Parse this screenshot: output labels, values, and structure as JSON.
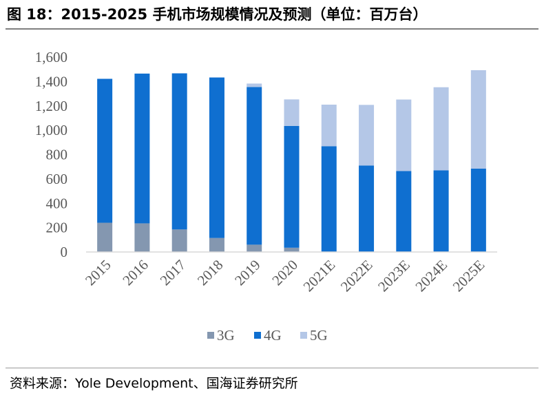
{
  "title": "图 18：2015-2025 手机市场规模情况及预测（单位：百万台）",
  "source": "资料来源：Yole Development、国海证券研究所",
  "colors": {
    "3G": "#8497b0",
    "4G": "#0f6fd0",
    "5G": "#b4c7e7",
    "axis": "#d9d9d9",
    "text": "#595959"
  },
  "chart_data": {
    "type": "bar",
    "stacked": true,
    "categories": [
      "2015",
      "2016",
      "2017",
      "2018",
      "2019",
      "2020",
      "2021E",
      "2022E",
      "2023E",
      "2024E",
      "2025E"
    ],
    "series": [
      {
        "name": "3G",
        "values": [
          240,
          235,
          185,
          115,
          60,
          35,
          0,
          0,
          0,
          0,
          0
        ]
      },
      {
        "name": "4G",
        "values": [
          1182,
          1230,
          1282,
          1318,
          1295,
          1000,
          868,
          710,
          665,
          670,
          685
        ]
      },
      {
        "name": "5G",
        "values": [
          0,
          0,
          0,
          0,
          28,
          218,
          342,
          498,
          587,
          683,
          808
        ]
      }
    ],
    "ylim": [
      0,
      1600
    ],
    "yticks": [
      0,
      200,
      400,
      600,
      800,
      1000,
      1200,
      1400,
      1600
    ],
    "ytick_labels": [
      "0",
      "200",
      "400",
      "600",
      "800",
      "1,000",
      "1,200",
      "1,400",
      "1,600"
    ],
    "legend": "bottom",
    "grid": false
  }
}
